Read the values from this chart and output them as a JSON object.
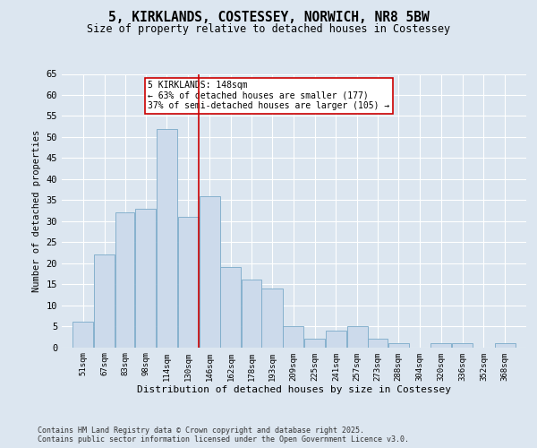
{
  "title": "5, KIRKLANDS, COSTESSEY, NORWICH, NR8 5BW",
  "subtitle": "Size of property relative to detached houses in Costessey",
  "xlabel": "Distribution of detached houses by size in Costessey",
  "ylabel": "Number of detached properties",
  "footer_line1": "Contains HM Land Registry data © Crown copyright and database right 2025.",
  "footer_line2": "Contains public sector information licensed under the Open Government Licence v3.0.",
  "bin_labels": [
    "51sqm",
    "67sqm",
    "83sqm",
    "98sqm",
    "114sqm",
    "130sqm",
    "146sqm",
    "162sqm",
    "178sqm",
    "193sqm",
    "209sqm",
    "225sqm",
    "241sqm",
    "257sqm",
    "273sqm",
    "288sqm",
    "304sqm",
    "320sqm",
    "336sqm",
    "352sqm",
    "368sqm"
  ],
  "bar_values": [
    6,
    22,
    32,
    33,
    52,
    31,
    36,
    19,
    16,
    14,
    5,
    2,
    4,
    5,
    2,
    1,
    0,
    1,
    1,
    0,
    1
  ],
  "bar_color": "#ccdaeb",
  "bar_edge_color": "#7aaac8",
  "vline_color": "#cc0000",
  "annotation_text": "5 KIRKLANDS: 148sqm\n← 63% of detached houses are smaller (177)\n37% of semi-detached houses are larger (105) →",
  "annotation_box_color": "#ffffff",
  "annotation_box_edge": "#cc0000",
  "ylim": [
    0,
    65
  ],
  "yticks": [
    0,
    5,
    10,
    15,
    20,
    25,
    30,
    35,
    40,
    45,
    50,
    55,
    60,
    65
  ],
  "background_color": "#dce6f0",
  "plot_background": "#dce6f0",
  "grid_color": "#ffffff",
  "bin_edges": [
    51,
    67,
    83,
    98,
    114,
    130,
    146,
    162,
    178,
    193,
    209,
    225,
    241,
    257,
    273,
    288,
    304,
    320,
    336,
    352,
    368,
    384
  ]
}
